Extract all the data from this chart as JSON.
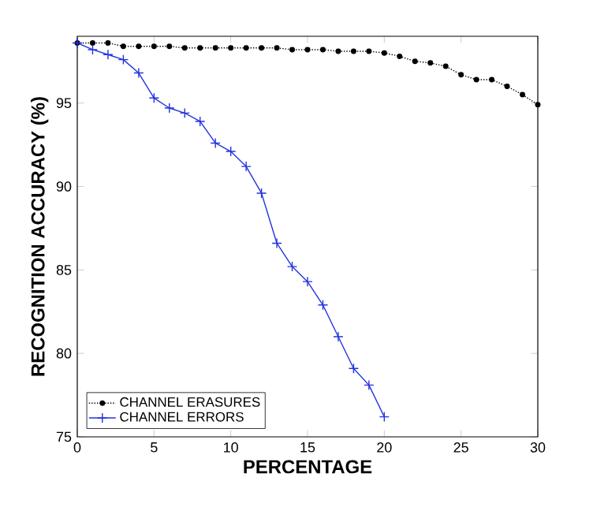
{
  "chart_data": {
    "type": "line",
    "xlabel": "PERCENTAGE",
    "ylabel": "RECOGNITION ACCURACY (%)",
    "x": [
      0,
      1,
      2,
      3,
      4,
      5,
      6,
      7,
      8,
      9,
      10,
      11,
      12,
      13,
      14,
      15,
      16,
      17,
      18,
      19,
      20,
      21,
      22,
      23,
      24,
      25,
      26,
      27,
      28,
      29,
      30
    ],
    "series": [
      {
        "name": "CHANNEL ERASURES",
        "color": "#000000",
        "marker": "circle",
        "line_style": "dotted",
        "values": [
          98.6,
          98.6,
          98.6,
          98.4,
          98.4,
          98.4,
          98.4,
          98.3,
          98.3,
          98.3,
          98.3,
          98.3,
          98.3,
          98.3,
          98.2,
          98.2,
          98.2,
          98.1,
          98.1,
          98.1,
          98.0,
          97.8,
          97.5,
          97.4,
          97.2,
          96.7,
          96.4,
          96.4,
          96.0,
          95.5,
          94.9
        ]
      },
      {
        "name": "CHANNEL ERRORS",
        "color": "#2233dd",
        "marker": "cross",
        "line_style": "solid",
        "values": [
          98.6,
          98.2,
          97.9,
          97.6,
          96.8,
          95.3,
          94.7,
          94.4,
          93.9,
          92.6,
          92.1,
          91.2,
          89.6,
          86.6,
          85.2,
          84.3,
          82.9,
          81.0,
          79.1,
          78.1,
          76.2,
          null,
          null,
          null,
          null,
          null,
          null,
          null,
          null,
          null,
          null
        ]
      }
    ],
    "xlim": [
      0,
      30
    ],
    "ylim": [
      75,
      99
    ],
    "xticks": [
      0,
      5,
      10,
      15,
      20,
      25,
      30
    ],
    "yticks": [
      75,
      80,
      85,
      90,
      95
    ],
    "grid": false,
    "legend": "bottom left"
  }
}
